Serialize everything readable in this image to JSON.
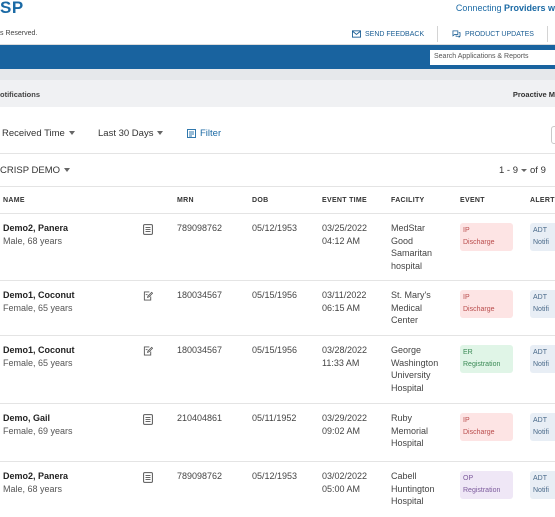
{
  "header": {
    "brand": "SP",
    "tagline_prefix": "Connecting ",
    "tagline_bold": "Providers w",
    "rights": "s Reserved.",
    "send_feedback": "SEND FEEDBACK",
    "product_updates": "PRODUCT UPDATES",
    "search_placeholder": "Search Applications & Reports"
  },
  "title_bar": {
    "left": "otifications",
    "right": "Proactive M"
  },
  "filters": {
    "received_time": "Received Time",
    "date_range": "Last 30 Days",
    "filter": "Filter"
  },
  "group": {
    "label": "CRISP DEMO",
    "pager_range": "1 - 9",
    "pager_of": "of  9"
  },
  "columns": {
    "name": "NAME",
    "mrn": "MRN",
    "dob": "DOB",
    "event_time": "EVENT TIME",
    "facility": "FACILITY",
    "event": "EVENT",
    "alert": "ALERT"
  },
  "rows": [
    {
      "name": "Demo2, Panera",
      "info": "Male, 68 years",
      "icon": "document-list-icon",
      "mrn": "789098762",
      "dob": "05/12/1953",
      "date": "03/25/2022",
      "time": "04:12 AM",
      "facility": [
        "MedStar",
        "Good",
        "Samaritan",
        "hospital"
      ],
      "event_line1": "IP",
      "event_line2": "Discharge",
      "event_color": "red",
      "alert_line1": "ADT",
      "alert_line2": "Notifi"
    },
    {
      "name": "Demo1, Coconut",
      "info": "Female, 65 years",
      "icon": "document-edit-icon",
      "mrn": "180034567",
      "dob": "05/15/1956",
      "date": "03/11/2022",
      "time": "06:15 AM",
      "facility": [
        "St. Mary's",
        "Medical",
        "Center"
      ],
      "event_line1": "IP",
      "event_line2": "Discharge",
      "event_color": "red",
      "alert_line1": "ADT",
      "alert_line2": "Notifi"
    },
    {
      "name": "Demo1, Coconut",
      "info": "Female, 65 years",
      "icon": "document-edit-icon",
      "mrn": "180034567",
      "dob": "05/15/1956",
      "date": "03/28/2022",
      "time": "11:33 AM",
      "facility": [
        "George",
        "Washington",
        "University",
        "Hospital"
      ],
      "event_line1": "ER",
      "event_line2": "Registration",
      "event_color": "green",
      "alert_line1": "ADT",
      "alert_line2": "Notifi"
    },
    {
      "name": "Demo, Gail",
      "info": "Female, 69 years",
      "icon": "document-list-icon",
      "mrn": "210404861",
      "dob": "05/11/1952",
      "date": "03/29/2022",
      "time": "09:02 AM",
      "facility": [
        "Ruby",
        "Memorial",
        "Hospital"
      ],
      "event_line1": "IP",
      "event_line2": "Discharge",
      "event_color": "red",
      "alert_line1": "ADT",
      "alert_line2": "Notifi"
    },
    {
      "name": "Demo2, Panera",
      "info": "Male, 68 years",
      "icon": "document-list-icon",
      "mrn": "789098762",
      "dob": "05/12/1953",
      "date": "03/02/2022",
      "time": "05:00 AM",
      "facility": [
        "Cabell",
        "Huntington",
        "Hospital"
      ],
      "event_line1": "OP",
      "event_line2": "Registration",
      "event_color": "purple",
      "alert_line1": "ADT",
      "alert_line2": "Notifi"
    }
  ],
  "colors": {
    "brand": "#1b6aa5",
    "nav_bar": "#19639f",
    "badge_red_bg": "#fde4e4",
    "badge_green_bg": "#e0f5e7",
    "badge_purple_bg": "#efe7f6"
  }
}
